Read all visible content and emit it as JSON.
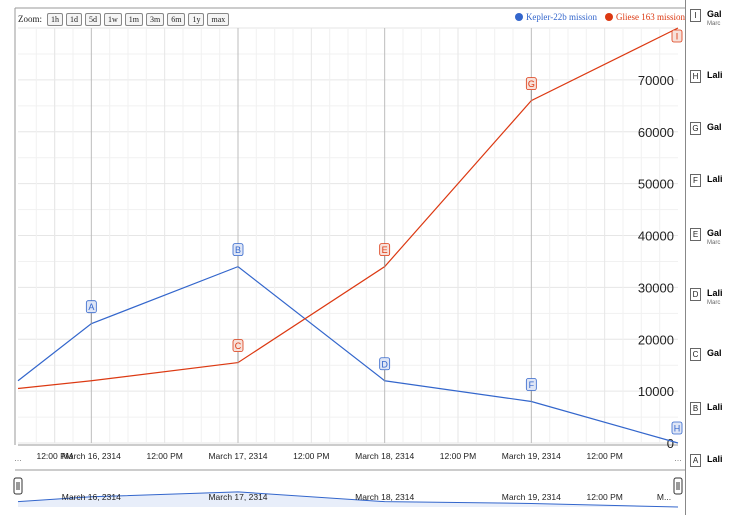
{
  "zoom": {
    "label": "Zoom:",
    "buttons": [
      "1h",
      "1d",
      "5d",
      "1w",
      "1m",
      "3m",
      "6m",
      "1y",
      "max"
    ]
  },
  "colors": {
    "kepler": "#3366cc",
    "gliese": "#dc3912",
    "grid": "#e6e6e6",
    "major_grid": "#bdbdbd",
    "nav_fill": "#e8eefa"
  },
  "chart_data": {
    "type": "line",
    "series": [
      {
        "name": "Kepler-22b mission",
        "x": [
          "2314-03-15T12:00",
          "2314-03-16T00:00",
          "2314-03-17T00:00",
          "2314-03-18T00:00",
          "2314-03-19T00:00",
          "2314-03-20T00:00"
        ],
        "values": [
          12000,
          23000,
          34000,
          12000,
          8000,
          0
        ]
      },
      {
        "name": "Gliese 163 mission",
        "x": [
          "2314-03-15T12:00",
          "2314-03-16T00:00",
          "2314-03-17T00:00",
          "2314-03-18T00:00",
          "2314-03-19T00:00",
          "2314-03-20T00:00"
        ],
        "values": [
          10500,
          12000,
          15500,
          34000,
          66000,
          80000
        ]
      }
    ],
    "y_ticks": [
      "0",
      "10000",
      "20000",
      "30000",
      "40000",
      "50000",
      "60000",
      "70000"
    ],
    "ylim": [
      0,
      80000
    ],
    "x_tick_labels": [
      "12:00 PM",
      "March 16, 2314",
      "12:00 PM",
      "March 17, 2314",
      "12:00 PM",
      "March 18, 2314",
      "12:00 PM",
      "March 19, 2314",
      "12:00 PM"
    ],
    "range_labels": [
      "March 16, 2314",
      "March 17, 2314",
      "March 18, 2314",
      "March 19, 2314",
      "12:00 PM",
      "M..."
    ],
    "markers": [
      {
        "letter": "A",
        "series": 0,
        "x": "2314-03-16T00:00"
      },
      {
        "letter": "B",
        "series": 0,
        "x": "2314-03-17T00:00"
      },
      {
        "letter": "C",
        "series": 1,
        "x": "2314-03-17T00:00"
      },
      {
        "letter": "D",
        "series": 0,
        "x": "2314-03-18T00:00"
      },
      {
        "letter": "E",
        "series": 1,
        "x": "2314-03-18T00:00"
      },
      {
        "letter": "F",
        "series": 0,
        "x": "2314-03-19T00:00"
      },
      {
        "letter": "G",
        "series": 1,
        "x": "2314-03-19T00:00"
      },
      {
        "letter": "H",
        "series": 0,
        "x": "2314-03-20T00:00"
      },
      {
        "letter": "I",
        "series": 1,
        "x": "2314-03-20T00:00"
      }
    ],
    "legend_position": "top-right",
    "grid": true
  },
  "annotations": [
    {
      "letter": "I",
      "title": "Gal",
      "sub": "Marc"
    },
    {
      "letter": "H",
      "title": "Lali",
      "sub": ""
    },
    {
      "letter": "G",
      "title": "Gal",
      "sub": ""
    },
    {
      "letter": "F",
      "title": "Lali",
      "sub": ""
    },
    {
      "letter": "E",
      "title": "Gal",
      "sub": "Marc"
    },
    {
      "letter": "D",
      "title": "Lali",
      "sub": "Marc"
    },
    {
      "letter": "C",
      "title": "Gal",
      "sub": ""
    },
    {
      "letter": "B",
      "title": "Lali",
      "sub": ""
    },
    {
      "letter": "A",
      "title": "Lali",
      "sub": ""
    }
  ]
}
